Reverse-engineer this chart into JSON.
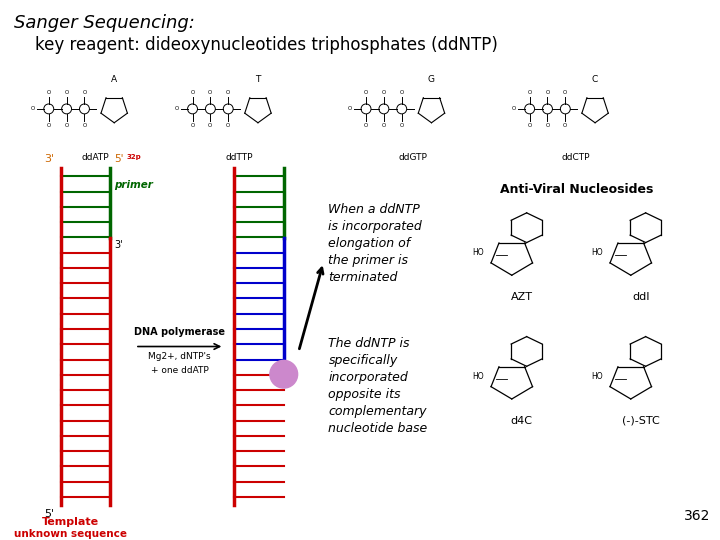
{
  "title_line1": "Sanger Sequencing:",
  "title_line2": "    key reagent: dideoxynucleotides triphosphates (ddNTP)",
  "title_fontsize": 13,
  "bg_color": "#ffffff",
  "text_color": "#000000",
  "template_color": "#cc0000",
  "primer_color": "#006600",
  "left_strand_color": "#cc0000",
  "right_strand_top_color": "#006600",
  "right_strand_bot_color": "#cc0000",
  "rung_color_red": "#cc0000",
  "rung_color_green": "#006600",
  "rung_color_blue": "#0000cc",
  "ball_color": "#cc88cc",
  "page_number": "362",
  "template_label_line1": "Template",
  "template_label_line2": "unknown sequence",
  "primer_label": "primer",
  "dna_poly_label": "DNA polymerase",
  "mg_label": "Mg2+, dNTP's",
  "one_dd_label": "+ one ddATP",
  "antiviral_title": "Anti-Viral Nucleosides",
  "azt_label": "AZT",
  "ddi_label": "ddI",
  "d4c_label": "d4C",
  "stc_label": "(-)-STC",
  "text_block1_lines": [
    "When a ddNTP",
    "is incorporated",
    "elongation of",
    "the primer is",
    "terminated"
  ],
  "text_block2_lines": [
    "The ddNTP is",
    "specifically",
    "incorporated",
    "opposite its",
    "complementary",
    "nucleotide base"
  ],
  "ddATP_label": "ddATP",
  "ddTTP_label": "ddTTP",
  "ddGTP_label": "ddGTP",
  "ddCTP_label": "ddCTP"
}
